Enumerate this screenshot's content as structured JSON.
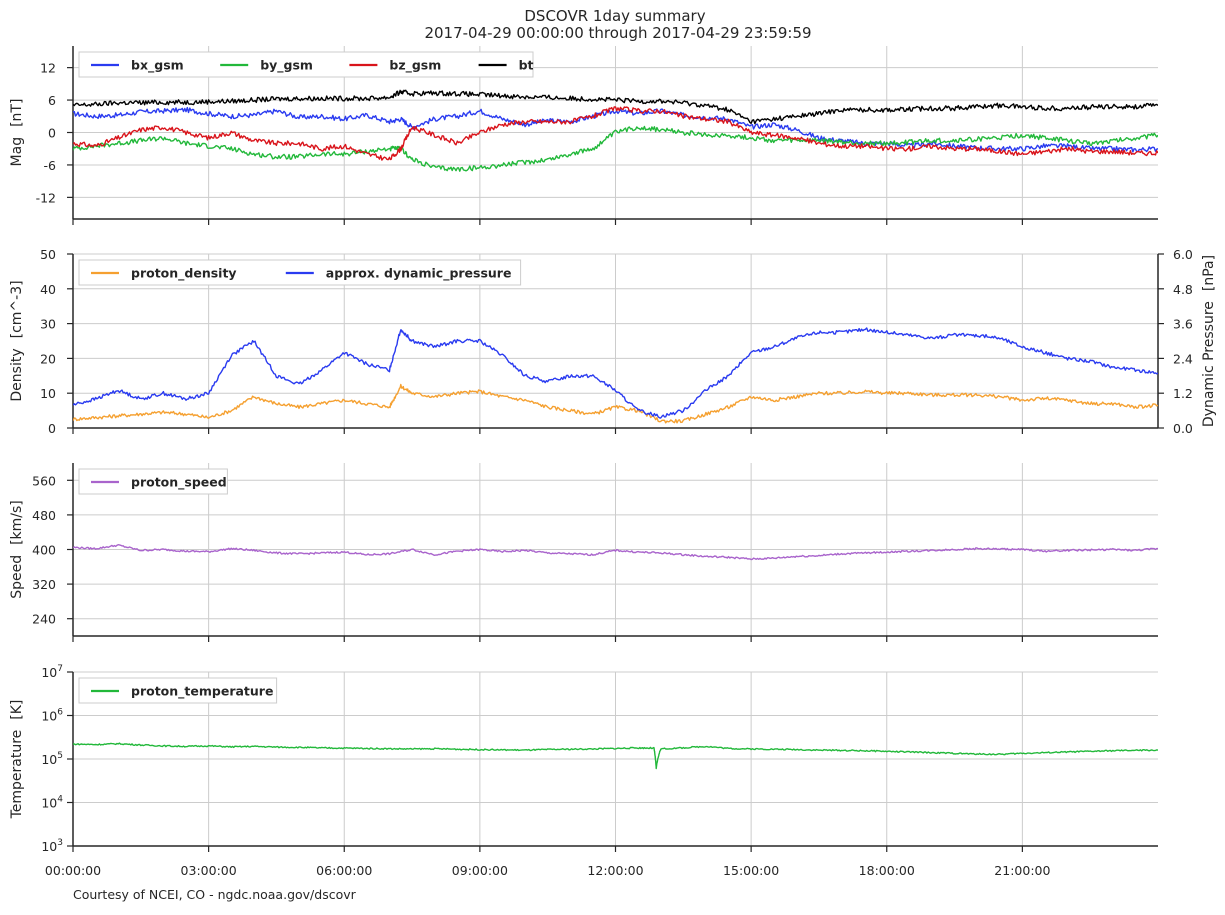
{
  "figure": {
    "title_line1": "DSCOVR 1day summary",
    "title_line2": "2017-04-29 00:00:00 through 2017-04-29 23:59:59",
    "credit": "Courtesy of NCEI, CO - ngdc.noaa.gov/dscovr"
  },
  "colors": {
    "blue": "#2a3bf0",
    "green": "#22b83a",
    "red": "#d9141b",
    "black": "#000000",
    "orange": "#f5a030",
    "purple": "#a964cc"
  },
  "chart_data": [
    {
      "type": "line",
      "id": "mag",
      "ylabel_main": "Mag",
      "ylabel_unit": "[nT]",
      "ylim": [
        -16,
        16
      ],
      "yticks": [
        "-12",
        "-6",
        "0",
        "6",
        "12"
      ],
      "ytick_values": [
        -12,
        -6,
        0,
        6,
        12
      ],
      "legend": "top-left",
      "x_hours": [
        0,
        0.5,
        1,
        1.5,
        2,
        2.5,
        3,
        3.5,
        4,
        4.5,
        5,
        5.5,
        6,
        6.5,
        7,
        7.25,
        7.5,
        8,
        8.5,
        9,
        9.5,
        10,
        10.5,
        11,
        11.5,
        12,
        12.5,
        13,
        13.5,
        14,
        14.5,
        15,
        15.5,
        16,
        16.5,
        17,
        17.5,
        18,
        18.5,
        19,
        19.5,
        20,
        20.5,
        21,
        21.5,
        22,
        22.5,
        23,
        23.5,
        24
      ],
      "series": [
        {
          "name": "bx_gsm",
          "color": "blue",
          "values": [
            3.5,
            3,
            3.2,
            3.8,
            4,
            4.2,
            3.5,
            3,
            3.2,
            4,
            2.8,
            3,
            2.5,
            3.2,
            2,
            2.5,
            1,
            2.5,
            3,
            4,
            2.5,
            1.5,
            2.2,
            2,
            3,
            4,
            3.5,
            4,
            3.2,
            2.8,
            2.5,
            1,
            1.5,
            0.5,
            -1,
            -1.5,
            -2,
            -2,
            -2.5,
            -2,
            -2.5,
            -2.8,
            -3,
            -3,
            -2.5,
            -2.5,
            -3,
            -3,
            -3.2,
            -3
          ]
        },
        {
          "name": "by_gsm",
          "color": "green",
          "values": [
            -3,
            -2.5,
            -2,
            -1.5,
            -1,
            -2,
            -2.5,
            -3,
            -4,
            -4.5,
            -4.5,
            -4,
            -4,
            -3.5,
            -3,
            -3,
            -5,
            -6.5,
            -6.8,
            -6.5,
            -6,
            -5.5,
            -5,
            -4,
            -3,
            0,
            1,
            0.5,
            0,
            -0.5,
            -0.5,
            -1,
            -1.5,
            -1.5,
            -1.5,
            -1.8,
            -2,
            -2,
            -1.8,
            -1.5,
            -1.5,
            -1.2,
            -1,
            -0.5,
            -1,
            -1.5,
            -2,
            -1.5,
            -1,
            -0.5
          ]
        },
        {
          "name": "bz_gsm",
          "color": "red",
          "values": [
            -2,
            -2.5,
            -1,
            0.5,
            1,
            0,
            -1,
            0,
            -1.5,
            -2,
            -2,
            -3,
            -2.5,
            -4,
            -5,
            -3,
            1,
            -0.5,
            -2,
            0,
            1.5,
            2,
            2,
            2,
            3,
            4.5,
            4,
            4,
            3,
            2.5,
            2,
            0,
            -0.5,
            -1,
            -2,
            -2.5,
            -2.5,
            -3,
            -3,
            -2.5,
            -3,
            -3,
            -3.5,
            -4,
            -3.5,
            -3,
            -3.5,
            -3.5,
            -3.8,
            -3.8
          ]
        },
        {
          "name": "bt",
          "color": "black",
          "values": [
            5,
            5.2,
            5.5,
            5.5,
            5.6,
            5.6,
            5.7,
            5.8,
            6,
            6.2,
            6.3,
            6.3,
            6.3,
            6.3,
            6.5,
            7.5,
            7.2,
            7.3,
            7.2,
            7,
            6.8,
            6.6,
            6.5,
            6.3,
            6.2,
            6,
            5.8,
            5.8,
            5.5,
            5,
            4.2,
            2,
            2.5,
            3,
            3.5,
            4.2,
            4.2,
            4.2,
            4.3,
            4.5,
            4.5,
            4.8,
            5,
            4.8,
            4.5,
            4.5,
            4.7,
            4.8,
            4.8,
            5
          ]
        }
      ]
    },
    {
      "type": "line",
      "id": "density",
      "ylabel_main": "Density",
      "ylabel_unit": "[cm^-3]",
      "ylim": [
        0,
        50
      ],
      "yticks": [
        "0",
        "10",
        "20",
        "30",
        "40",
        "50"
      ],
      "ytick_values": [
        0,
        10,
        20,
        30,
        40,
        50
      ],
      "y2label_main": "Dynamic Pressure",
      "y2label_unit": "[nPa]",
      "y2lim": [
        0,
        6
      ],
      "y2ticks": [
        "0.0",
        "1.2",
        "2.4",
        "3.6",
        "4.8",
        "6.0"
      ],
      "y2tick_values": [
        0,
        1.2,
        2.4,
        3.6,
        4.8,
        6.0
      ],
      "legend": "top-left",
      "x_hours": [
        0,
        0.5,
        1,
        1.5,
        2,
        2.5,
        3,
        3.5,
        4,
        4.5,
        5,
        5.5,
        6,
        6.5,
        7,
        7.25,
        7.5,
        8,
        8.5,
        9,
        9.5,
        10,
        10.5,
        11,
        11.5,
        12,
        12.5,
        13,
        13.5,
        14,
        14.5,
        15,
        15.5,
        16,
        16.5,
        17,
        17.5,
        18,
        18.5,
        19,
        19.5,
        20,
        20.5,
        21,
        21.5,
        22,
        22.5,
        23,
        23.5,
        24
      ],
      "series": [
        {
          "name": "proton_density",
          "axis": "left",
          "color": "orange",
          "values": [
            2.5,
            3,
            3.5,
            4,
            4.5,
            4,
            3,
            5,
            9,
            7,
            6,
            7,
            8,
            7,
            6,
            12,
            10,
            9,
            10,
            10.5,
            9,
            8,
            6,
            5,
            4,
            6,
            5,
            2,
            2,
            4,
            6,
            9,
            8,
            9,
            10,
            10,
            10.5,
            10,
            10,
            9.5,
            9.5,
            9.5,
            9,
            8,
            8.5,
            8,
            7,
            7,
            6,
            6.5
          ]
        },
        {
          "name": "approx. dynamic_pressure",
          "axis": "right",
          "color": "blue",
          "values": [
            0.8,
            1,
            1.3,
            1,
            1.2,
            1,
            1.2,
            2.5,
            3,
            1.8,
            1.5,
            2,
            2.6,
            2.2,
            2,
            3.4,
            3,
            2.8,
            3,
            3,
            2.5,
            1.8,
            1.6,
            1.8,
            1.8,
            1.3,
            0.6,
            0.4,
            0.6,
            1.3,
            1.8,
            2.6,
            2.8,
            3.1,
            3.3,
            3.3,
            3.4,
            3.3,
            3.2,
            3.1,
            3.2,
            3.2,
            3.1,
            2.8,
            2.6,
            2.4,
            2.3,
            2.1,
            2,
            1.9
          ]
        }
      ]
    },
    {
      "type": "line",
      "id": "speed",
      "ylabel_main": "Speed",
      "ylabel_unit": "[km/s]",
      "ylim": [
        200,
        600
      ],
      "yticks": [
        "240",
        "320",
        "400",
        "480",
        "560"
      ],
      "ytick_values": [
        240,
        320,
        400,
        480,
        560
      ],
      "legend": "top-left",
      "x_hours": [
        0,
        0.5,
        1,
        1.5,
        2,
        2.5,
        3,
        3.5,
        4,
        4.5,
        5,
        5.5,
        6,
        6.5,
        7,
        7.5,
        8,
        8.5,
        9,
        9.5,
        10,
        10.5,
        11,
        11.5,
        12,
        12.5,
        13,
        13.5,
        14,
        14.5,
        15,
        15.5,
        16,
        16.5,
        17,
        17.5,
        18,
        18.5,
        19,
        19.5,
        20,
        20.5,
        21,
        21.5,
        22,
        22.5,
        23,
        23.5,
        24
      ],
      "series": [
        {
          "name": "proton_speed",
          "color": "purple",
          "values": [
            405,
            402,
            410,
            398,
            400,
            396,
            395,
            402,
            398,
            392,
            390,
            392,
            394,
            388,
            390,
            400,
            388,
            396,
            400,
            395,
            398,
            392,
            390,
            388,
            398,
            394,
            392,
            388,
            384,
            382,
            378,
            380,
            384,
            386,
            390,
            392,
            394,
            396,
            398,
            400,
            402,
            401,
            400,
            396,
            398,
            399,
            400,
            398,
            402
          ]
        }
      ]
    },
    {
      "type": "line",
      "id": "temperature",
      "ylabel_main": "Temperature",
      "ylabel_unit": "[K]",
      "yscale": "log",
      "ylim_exp": [
        3,
        7
      ],
      "ytick_base": "10",
      "ytick_exponents": [
        "3",
        "4",
        "5",
        "6",
        "7"
      ],
      "legend": "top-left",
      "x_hours": [
        0,
        0.5,
        1,
        1.5,
        2,
        2.5,
        3,
        3.5,
        4,
        4.5,
        5,
        5.5,
        6,
        6.5,
        7,
        7.5,
        8,
        8.5,
        9,
        9.5,
        10,
        10.5,
        11,
        11.5,
        12,
        12.5,
        12.85,
        12.9,
        13,
        13.5,
        14,
        14.5,
        15,
        15.5,
        16,
        16.5,
        17,
        17.5,
        18,
        18.5,
        19,
        19.5,
        20,
        20.5,
        21,
        21.5,
        22,
        22.5,
        23,
        23.5,
        24
      ],
      "series": [
        {
          "name": "proton_temperature",
          "color": "green",
          "values": [
            220000,
            215000,
            225000,
            210000,
            200000,
            195000,
            200000,
            190000,
            195000,
            188000,
            185000,
            180000,
            178000,
            175000,
            172000,
            170000,
            172000,
            168000,
            165000,
            162000,
            160000,
            165000,
            168000,
            170000,
            175000,
            180000,
            178000,
            60000,
            170000,
            180000,
            195000,
            175000,
            170000,
            168000,
            165000,
            160000,
            158000,
            155000,
            150000,
            145000,
            140000,
            135000,
            130000,
            128000,
            135000,
            140000,
            145000,
            150000,
            155000,
            158000,
            160000
          ]
        }
      ]
    }
  ],
  "xaxis": {
    "xlim": [
      0,
      24
    ],
    "tick_hours": [
      0,
      3,
      6,
      9,
      12,
      15,
      18,
      21
    ],
    "tick_labels": [
      "00:00:00",
      "03:00:00",
      "06:00:00",
      "09:00:00",
      "12:00:00",
      "15:00:00",
      "18:00:00",
      "21:00:00"
    ]
  }
}
